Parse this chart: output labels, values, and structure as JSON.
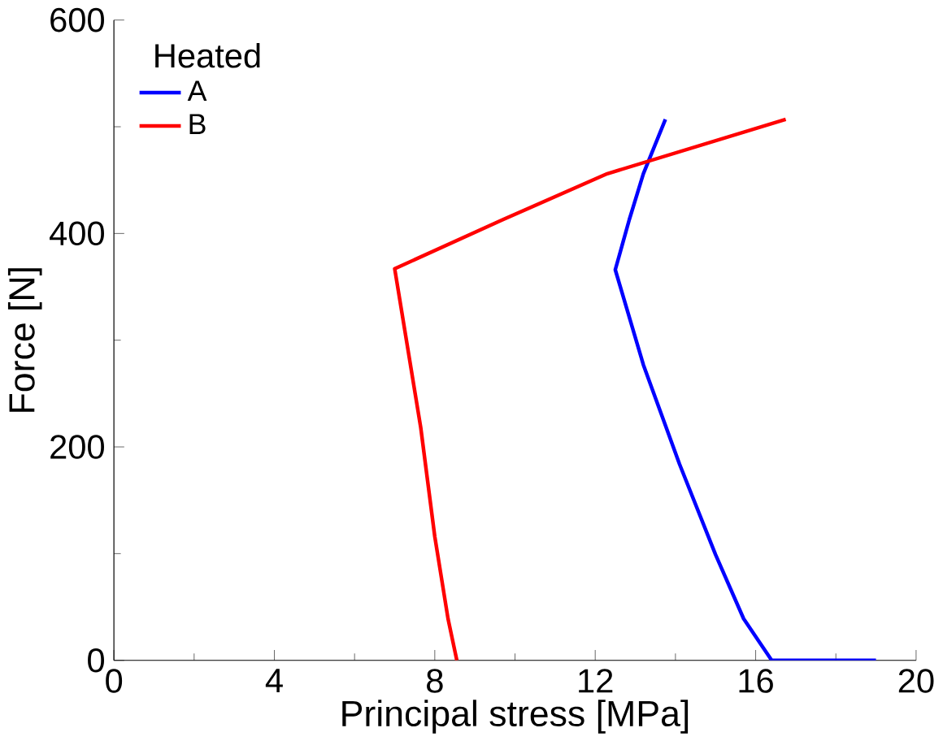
{
  "chart_data": {
    "type": "line",
    "xlabel": "Principal stress [MPa]",
    "ylabel": "Force  [N]",
    "legend_title": "Heated",
    "legend": "top left",
    "xlim": [
      0,
      20
    ],
    "ylim": [
      0,
      600
    ],
    "xticks": [
      0,
      4,
      8,
      12,
      16,
      20
    ],
    "yticks": [
      0,
      200,
      400,
      600
    ],
    "grid": false,
    "series": [
      {
        "name": "A",
        "color": "#0000ff",
        "x": [
          19.0,
          16.4,
          15.7,
          15.0,
          14.1,
          13.2,
          12.5,
          12.85,
          13.2,
          13.75
        ],
        "values": [
          0,
          0,
          39,
          99,
          184,
          277,
          366,
          413,
          456,
          507
        ]
      },
      {
        "name": "B",
        "color": "#ff0000",
        "x": [
          8.55,
          8.33,
          8.0,
          7.65,
          7.0,
          9.7,
          12.3,
          16.75
        ],
        "values": [
          0,
          39,
          116,
          218,
          367,
          413,
          456,
          507
        ]
      }
    ]
  }
}
